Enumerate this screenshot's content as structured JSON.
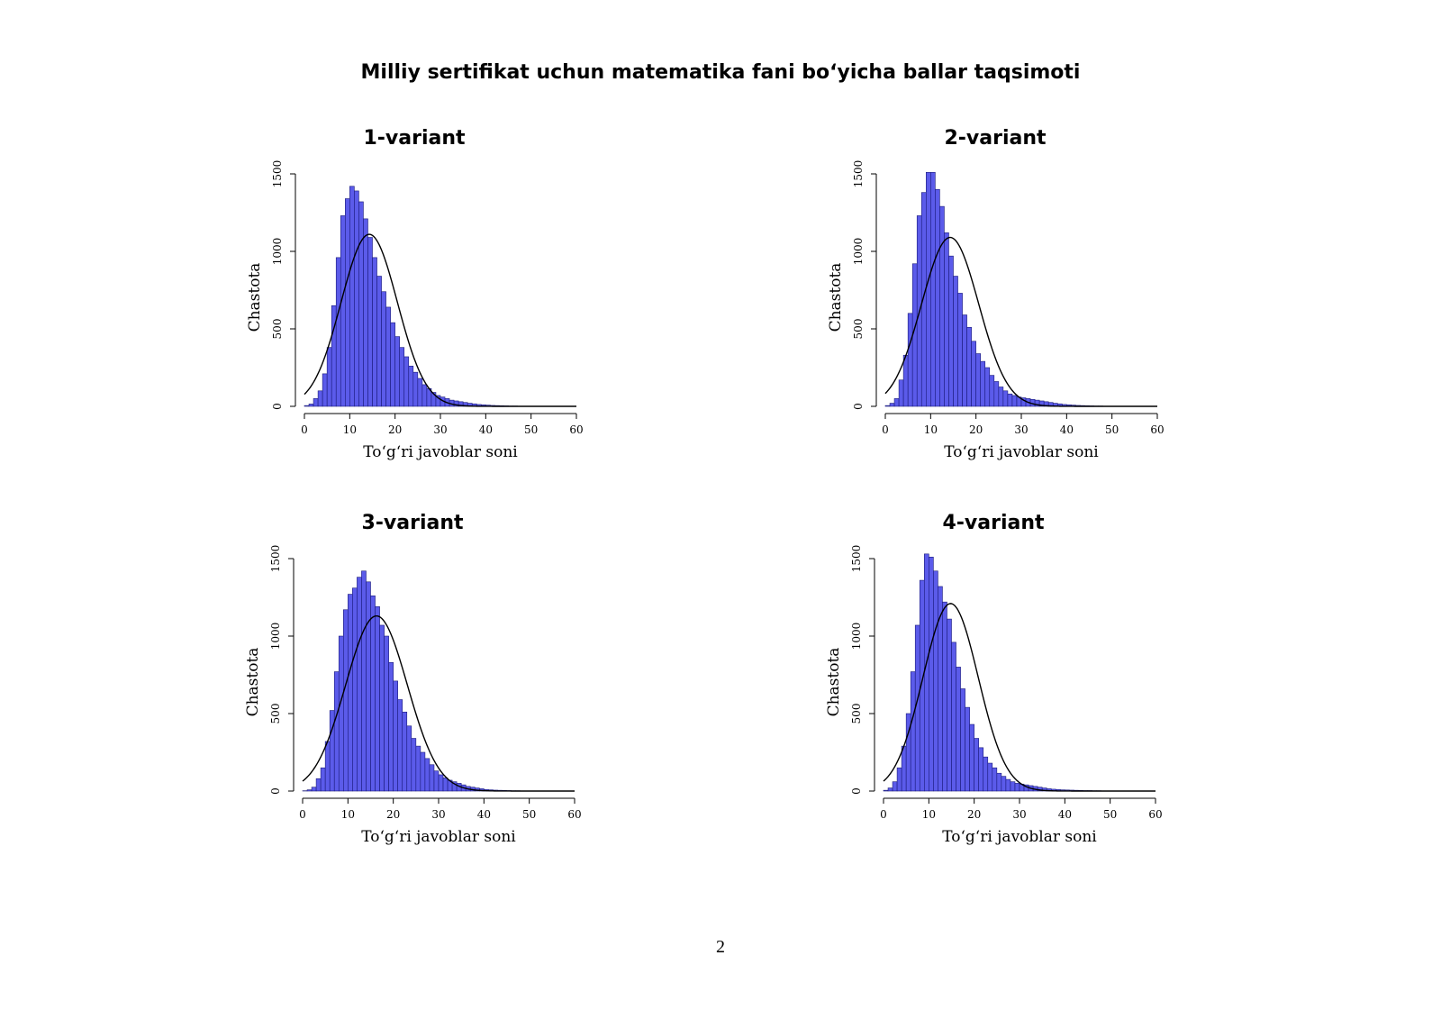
{
  "page": {
    "title": "Milliy sertifikat uchun matematika fani bo‘yicha ballar taqsimoti",
    "page_number": "2"
  },
  "colors": {
    "bar_fill": "#5b5bea",
    "bar_stroke": "#1a1a7a",
    "curve": "#000000"
  },
  "chart_data": [
    {
      "type": "bar",
      "title": "1-variant",
      "xlabel": "To‘g‘ri javoblar soni",
      "ylabel": "Chastota",
      "xlim": [
        0,
        60
      ],
      "ylim": [
        0,
        1500
      ],
      "xticks": [
        0,
        10,
        20,
        30,
        40,
        50,
        60
      ],
      "yticks": [
        0,
        500,
        1000,
        1500
      ],
      "bin_width": 1,
      "x_start": 0,
      "values": [
        5,
        15,
        50,
        100,
        210,
        380,
        650,
        960,
        1230,
        1340,
        1420,
        1390,
        1320,
        1210,
        1090,
        960,
        840,
        740,
        640,
        540,
        450,
        380,
        320,
        260,
        220,
        180,
        140,
        115,
        90,
        70,
        60,
        50,
        40,
        35,
        30,
        25,
        20,
        16,
        12,
        10,
        8,
        6,
        5,
        4,
        3,
        2,
        2,
        1,
        1,
        1,
        0,
        0,
        0,
        0,
        0,
        0,
        0,
        0,
        0,
        0
      ],
      "normal_curve": {
        "mean": 14.3,
        "sd": 6.2,
        "peak": 1110
      }
    },
    {
      "type": "bar",
      "title": "2-variant",
      "xlabel": "To‘g‘ri javoblar soni",
      "ylabel": "Chastota",
      "xlim": [
        0,
        60
      ],
      "ylim": [
        0,
        1500
      ],
      "xticks": [
        0,
        10,
        20,
        30,
        40,
        50,
        60
      ],
      "yticks": [
        0,
        500,
        1000,
        1500
      ],
      "bin_width": 1,
      "x_start": 0,
      "values": [
        5,
        20,
        50,
        170,
        330,
        600,
        920,
        1230,
        1380,
        1510,
        1510,
        1400,
        1290,
        1120,
        970,
        840,
        730,
        590,
        510,
        420,
        340,
        290,
        250,
        200,
        160,
        125,
        100,
        80,
        70,
        60,
        55,
        50,
        45,
        40,
        35,
        30,
        25,
        20,
        16,
        12,
        10,
        8,
        6,
        5,
        4,
        3,
        2,
        2,
        1,
        1,
        0,
        0,
        0,
        0,
        0,
        0,
        0,
        0,
        0,
        0
      ],
      "normal_curve": {
        "mean": 14.3,
        "sd": 6.3,
        "peak": 1090
      }
    },
    {
      "type": "bar",
      "title": "3-variant",
      "xlabel": "To‘g‘ri javoblar soni",
      "ylabel": "Chastota",
      "xlim": [
        0,
        60
      ],
      "ylim": [
        0,
        1500
      ],
      "xticks": [
        0,
        10,
        20,
        30,
        40,
        50,
        60
      ],
      "yticks": [
        0,
        500,
        1000,
        1500
      ],
      "bin_width": 1,
      "x_start": 0,
      "values": [
        2,
        8,
        25,
        80,
        150,
        320,
        520,
        770,
        1000,
        1170,
        1270,
        1310,
        1380,
        1420,
        1350,
        1260,
        1190,
        1070,
        1000,
        830,
        710,
        590,
        510,
        420,
        340,
        290,
        250,
        210,
        170,
        130,
        105,
        85,
        70,
        60,
        50,
        40,
        30,
        25,
        20,
        15,
        10,
        8,
        6,
        5,
        4,
        3,
        2,
        2,
        1,
        1,
        0,
        0,
        0,
        0,
        0,
        0,
        0,
        0,
        0,
        0
      ],
      "normal_curve": {
        "mean": 16.3,
        "sd": 6.8,
        "peak": 1130
      }
    },
    {
      "type": "bar",
      "title": "4-variant",
      "xlabel": "To‘g‘ri javoblar soni",
      "ylabel": "Chastota",
      "xlim": [
        0,
        60
      ],
      "ylim": [
        0,
        1500
      ],
      "xticks": [
        0,
        10,
        20,
        30,
        40,
        50,
        60
      ],
      "yticks": [
        0,
        500,
        1000,
        1500
      ],
      "bin_width": 1,
      "x_start": 0,
      "values": [
        5,
        20,
        60,
        150,
        290,
        500,
        770,
        1070,
        1360,
        1530,
        1510,
        1420,
        1320,
        1220,
        1110,
        960,
        800,
        660,
        540,
        430,
        340,
        280,
        220,
        180,
        150,
        115,
        95,
        75,
        60,
        50,
        45,
        40,
        35,
        30,
        25,
        20,
        15,
        12,
        10,
        8,
        7,
        6,
        5,
        4,
        3,
        3,
        2,
        2,
        1,
        1,
        0,
        0,
        0,
        0,
        0,
        0,
        0,
        0,
        0,
        0
      ],
      "normal_curve": {
        "mean": 14.8,
        "sd": 6.1,
        "peak": 1210
      }
    }
  ]
}
